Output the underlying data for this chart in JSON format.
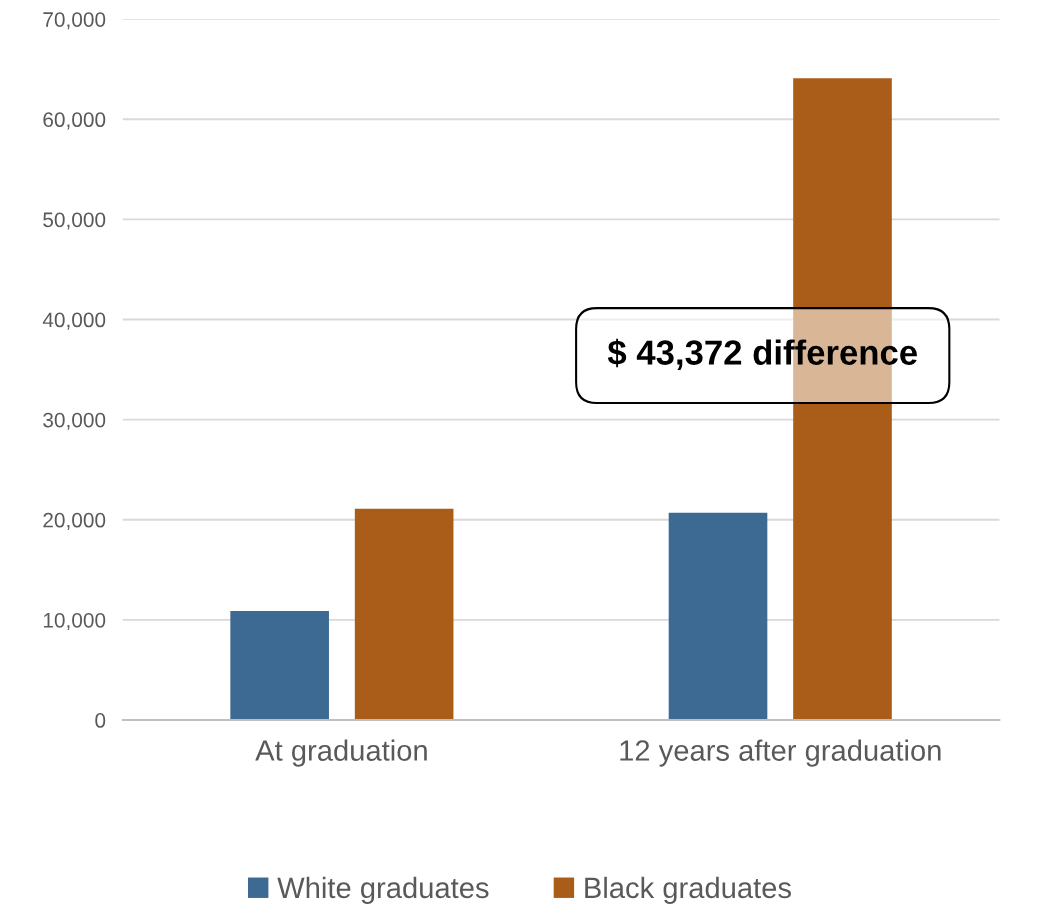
{
  "chart_data": {
    "type": "bar",
    "categories": [
      "At graduation",
      "12 years after graduation"
    ],
    "series": [
      {
        "name": "White graduates",
        "color": "#3d6a92",
        "values": [
          10900,
          20700
        ]
      },
      {
        "name": "Black graduates",
        "color": "#a95d18",
        "values": [
          21100,
          64100
        ]
      }
    ],
    "ylim": [
      0,
      70000
    ],
    "yticks": [
      {
        "value": 0,
        "label": "0"
      },
      {
        "value": 10000,
        "label": "10,000"
      },
      {
        "value": 20000,
        "label": "20,000"
      },
      {
        "value": 30000,
        "label": "30,000"
      },
      {
        "value": 40000,
        "label": "40,000"
      },
      {
        "value": 50000,
        "label": "50,000"
      },
      {
        "value": 60000,
        "label": "60,000"
      },
      {
        "value": 70000,
        "label": "70,000"
      }
    ],
    "grid": "y",
    "legend": "bottom",
    "annotations": [
      "$ 43,372 difference"
    ]
  }
}
